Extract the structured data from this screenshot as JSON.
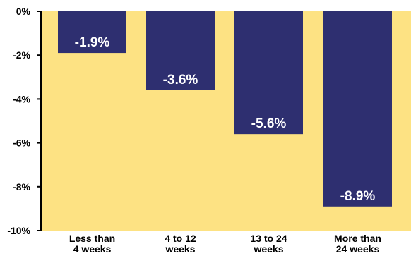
{
  "chart_data": {
    "type": "bar",
    "title": "",
    "xlabel": "",
    "ylabel": "",
    "categories": [
      [
        "Less than",
        "4 weeks"
      ],
      [
        "4 to 12",
        "weeks"
      ],
      [
        "13 to 24",
        "weeks"
      ],
      [
        "More than",
        "24 weeks"
      ]
    ],
    "values": [
      -1.9,
      -3.6,
      -5.6,
      -8.9
    ],
    "data_labels": [
      "-1.9%",
      "-3.6%",
      "-5.6%",
      "-8.9%"
    ],
    "ylim": [
      -10,
      0
    ],
    "y_ticks": [
      0,
      -2,
      -4,
      -6,
      -8,
      -10
    ],
    "y_tick_labels": [
      "0%",
      "-2%",
      "-4%",
      "-6%",
      "-8%",
      "-10%"
    ],
    "grid": false,
    "legend": "none",
    "colors": {
      "bar": "#2e2f70",
      "plot_background": "#fde283",
      "axis": "#000000",
      "data_label_text": "#ffffff"
    }
  }
}
